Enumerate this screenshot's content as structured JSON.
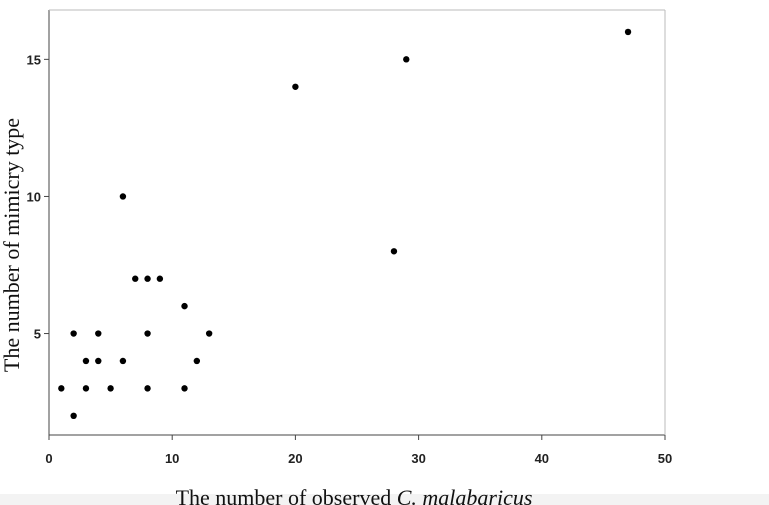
{
  "chart_data": {
    "type": "scatter",
    "title": "",
    "xlabel_prefix": "The number of observed ",
    "xlabel_italic": "C. malabaricus",
    "ylabel": "The number of mimicry type",
    "xlim": [
      0,
      50
    ],
    "ylim": [
      1.3,
      16.8
    ],
    "xticks": [
      0,
      10,
      20,
      30,
      40,
      50
    ],
    "yticks": [
      5,
      10,
      15
    ],
    "grid": false,
    "marker_color": "#000000",
    "points": [
      {
        "x": 1,
        "y": 3
      },
      {
        "x": 2,
        "y": 2
      },
      {
        "x": 2,
        "y": 5
      },
      {
        "x": 3,
        "y": 4
      },
      {
        "x": 3,
        "y": 3
      },
      {
        "x": 4,
        "y": 5
      },
      {
        "x": 4,
        "y": 4
      },
      {
        "x": 5,
        "y": 3
      },
      {
        "x": 6,
        "y": 10
      },
      {
        "x": 6,
        "y": 4
      },
      {
        "x": 7,
        "y": 7
      },
      {
        "x": 8,
        "y": 7
      },
      {
        "x": 8,
        "y": 5
      },
      {
        "x": 8,
        "y": 3
      },
      {
        "x": 9,
        "y": 7
      },
      {
        "x": 11,
        "y": 6
      },
      {
        "x": 11,
        "y": 3
      },
      {
        "x": 12,
        "y": 4
      },
      {
        "x": 13,
        "y": 5
      },
      {
        "x": 20,
        "y": 14
      },
      {
        "x": 28,
        "y": 8
      },
      {
        "x": 29,
        "y": 15
      },
      {
        "x": 47,
        "y": 16
      }
    ]
  }
}
